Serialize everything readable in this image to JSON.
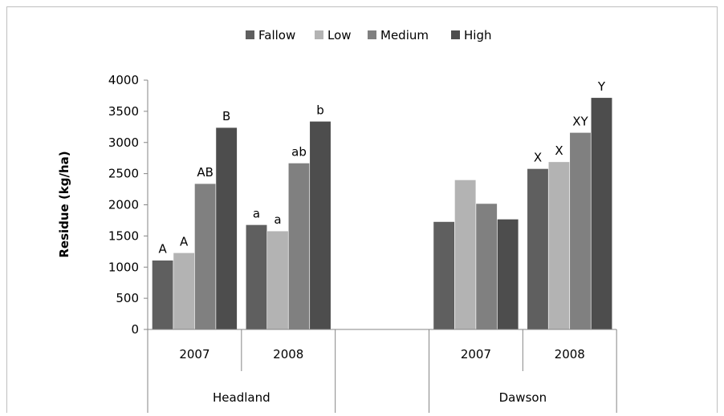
{
  "chart_data": {
    "type": "bar",
    "title": "",
    "xlabel": "",
    "ylabel": "Residue (kg/ha)",
    "ylim": [
      0,
      4000
    ],
    "yticks": [
      "0",
      "500",
      "1000",
      "1500",
      "2000",
      "2500",
      "3000",
      "3500",
      "4000"
    ],
    "grid": false,
    "legend_position": "top",
    "series": [
      {
        "name": "Fallow",
        "color": "#5f5f5f"
      },
      {
        "name": "Low",
        "color": "#b3b3b3"
      },
      {
        "name": "Medium",
        "color": "#808080"
      },
      {
        "name": "High",
        "color": "#4d4d4d"
      }
    ],
    "sites": [
      {
        "name": "Headland",
        "years": [
          {
            "year": "2007",
            "values": [
              1110,
              1230,
              2340,
              3240
            ],
            "labels": [
              "A",
              "A",
              "AB",
              "B"
            ]
          },
          {
            "year": "2008",
            "values": [
              1680,
              1580,
              2670,
              3340
            ],
            "labels": [
              "a",
              "a",
              "ab",
              "b"
            ]
          }
        ]
      },
      {
        "name": "",
        "years": [
          {
            "year": "",
            "values": [
              null,
              null,
              null,
              null
            ],
            "labels": [
              "",
              "",
              "",
              ""
            ]
          }
        ]
      },
      {
        "name": "Dawson",
        "years": [
          {
            "year": "2007",
            "values": [
              1730,
              2400,
              2020,
              1770
            ],
            "labels": [
              "",
              "",
              "",
              ""
            ]
          },
          {
            "year": "2008",
            "values": [
              2580,
              2690,
              3160,
              3720
            ],
            "labels": [
              "X",
              "X",
              "XY",
              "Y"
            ]
          }
        ]
      }
    ]
  }
}
